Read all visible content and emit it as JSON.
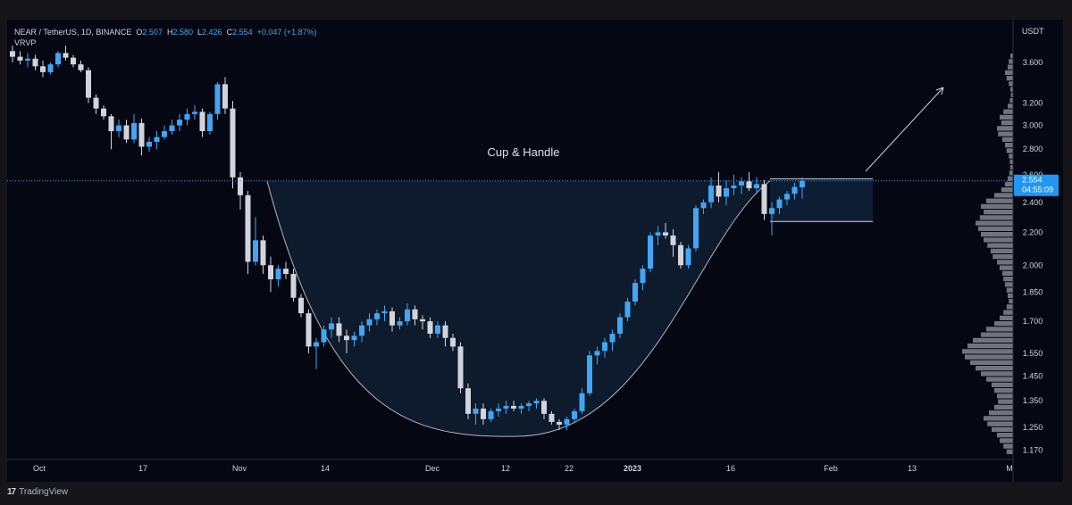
{
  "header": {
    "symbol": "NEAR / TetherUS, 1D, BINANCE",
    "open_label": "O",
    "open": "2.507",
    "high_label": "H",
    "high": "2.580",
    "low_label": "L",
    "low": "2.426",
    "close_label": "C",
    "close": "2.554",
    "change": "+0.047 (+1.87%)",
    "indicator": "VRVP",
    "currency": "USDT"
  },
  "price_tag": {
    "price": "2.554",
    "countdown": "04:55:09"
  },
  "footer": {
    "brand": "TradingView",
    "brand_glyph": "17"
  },
  "colors": {
    "up": "#42a5f5",
    "down": "#d1d4dc",
    "background": "#050813",
    "cup_fill": "#0f1e33",
    "profile": "#9598a1"
  },
  "chart_data": {
    "type": "candlestick",
    "title": "Cup & Handle",
    "ylim": [
      1.14,
      3.85
    ],
    "y_scale": "log",
    "yticks": [
      "3.600",
      "3.200",
      "3.000",
      "2.800",
      "2.600",
      "2.400",
      "2.200",
      "2.000",
      "1.850",
      "1.700",
      "1.550",
      "1.450",
      "1.350",
      "1.250",
      "1.170"
    ],
    "xticks": [
      "Oct",
      "17",
      "Nov",
      "14",
      "Dec",
      "12",
      "22",
      "2023",
      "16",
      "Feb",
      "13",
      "M"
    ],
    "ohlc": [
      [
        3.72,
        3.78,
        3.6,
        3.66
      ],
      [
        3.66,
        3.72,
        3.58,
        3.62
      ],
      [
        3.62,
        3.7,
        3.55,
        3.64
      ],
      [
        3.64,
        3.68,
        3.52,
        3.56
      ],
      [
        3.56,
        3.62,
        3.45,
        3.5
      ],
      [
        3.5,
        3.6,
        3.48,
        3.58
      ],
      [
        3.58,
        3.72,
        3.55,
        3.7
      ],
      [
        3.7,
        3.78,
        3.62,
        3.65
      ],
      [
        3.65,
        3.68,
        3.55,
        3.58
      ],
      [
        3.58,
        3.62,
        3.5,
        3.52
      ],
      [
        3.52,
        3.55,
        3.2,
        3.25
      ],
      [
        3.25,
        3.28,
        3.1,
        3.15
      ],
      [
        3.15,
        3.18,
        3.05,
        3.08
      ],
      [
        3.08,
        3.1,
        2.8,
        2.95
      ],
      [
        2.95,
        3.05,
        2.9,
        3.0
      ],
      [
        3.0,
        3.05,
        2.85,
        2.88
      ],
      [
        2.88,
        3.1,
        2.85,
        3.02
      ],
      [
        3.02,
        3.06,
        2.75,
        2.82
      ],
      [
        2.82,
        2.9,
        2.78,
        2.86
      ],
      [
        2.86,
        2.95,
        2.8,
        2.9
      ],
      [
        2.9,
        3.0,
        2.88,
        2.95
      ],
      [
        2.95,
        3.05,
        2.92,
        3.0
      ],
      [
        3.0,
        3.1,
        2.95,
        3.05
      ],
      [
        3.05,
        3.15,
        3.0,
        3.1
      ],
      [
        3.1,
        3.18,
        3.05,
        3.12
      ],
      [
        3.12,
        3.15,
        2.9,
        2.95
      ],
      [
        2.95,
        3.12,
        2.92,
        3.1
      ],
      [
        3.1,
        3.4,
        3.05,
        3.38
      ],
      [
        3.38,
        3.45,
        3.1,
        3.15
      ],
      [
        3.15,
        3.22,
        2.5,
        2.58
      ],
      [
        2.58,
        2.62,
        2.35,
        2.45
      ],
      [
        2.45,
        2.48,
        1.95,
        2.02
      ],
      [
        2.02,
        2.3,
        2.0,
        2.15
      ],
      [
        2.15,
        2.18,
        1.95,
        2.0
      ],
      [
        2.0,
        2.05,
        1.85,
        1.92
      ],
      [
        1.92,
        2.0,
        1.88,
        1.98
      ],
      [
        1.98,
        2.02,
        1.92,
        1.95
      ],
      [
        1.95,
        1.98,
        1.8,
        1.82
      ],
      [
        1.82,
        1.84,
        1.72,
        1.74
      ],
      [
        1.74,
        1.76,
        1.55,
        1.58
      ],
      [
        1.58,
        1.62,
        1.48,
        1.6
      ],
      [
        1.6,
        1.68,
        1.58,
        1.66
      ],
      [
        1.66,
        1.72,
        1.62,
        1.69
      ],
      [
        1.69,
        1.72,
        1.6,
        1.63
      ],
      [
        1.63,
        1.66,
        1.55,
        1.61
      ],
      [
        1.61,
        1.65,
        1.58,
        1.63
      ],
      [
        1.63,
        1.7,
        1.6,
        1.68
      ],
      [
        1.68,
        1.74,
        1.65,
        1.71
      ],
      [
        1.71,
        1.76,
        1.68,
        1.74
      ],
      [
        1.74,
        1.78,
        1.7,
        1.75
      ],
      [
        1.75,
        1.77,
        1.65,
        1.68
      ],
      [
        1.68,
        1.72,
        1.66,
        1.7
      ],
      [
        1.7,
        1.79,
        1.68,
        1.76
      ],
      [
        1.76,
        1.78,
        1.68,
        1.71
      ],
      [
        1.71,
        1.73,
        1.66,
        1.7
      ],
      [
        1.7,
        1.72,
        1.62,
        1.64
      ],
      [
        1.64,
        1.7,
        1.62,
        1.68
      ],
      [
        1.68,
        1.7,
        1.58,
        1.62
      ],
      [
        1.62,
        1.64,
        1.56,
        1.58
      ],
      [
        1.58,
        1.6,
        1.38,
        1.4
      ],
      [
        1.4,
        1.42,
        1.28,
        1.3
      ],
      [
        1.3,
        1.34,
        1.26,
        1.32
      ],
      [
        1.32,
        1.34,
        1.26,
        1.28
      ],
      [
        1.28,
        1.32,
        1.27,
        1.31
      ],
      [
        1.31,
        1.34,
        1.29,
        1.32
      ],
      [
        1.32,
        1.35,
        1.3,
        1.33
      ],
      [
        1.33,
        1.35,
        1.31,
        1.32
      ],
      [
        1.32,
        1.34,
        1.3,
        1.33
      ],
      [
        1.33,
        1.35,
        1.31,
        1.34
      ],
      [
        1.34,
        1.36,
        1.32,
        1.35
      ],
      [
        1.35,
        1.36,
        1.28,
        1.3
      ],
      [
        1.3,
        1.31,
        1.26,
        1.27
      ],
      [
        1.27,
        1.28,
        1.24,
        1.26
      ],
      [
        1.26,
        1.29,
        1.24,
        1.28
      ],
      [
        1.28,
        1.32,
        1.27,
        1.31
      ],
      [
        1.31,
        1.4,
        1.3,
        1.38
      ],
      [
        1.38,
        1.56,
        1.37,
        1.54
      ],
      [
        1.54,
        1.58,
        1.5,
        1.56
      ],
      [
        1.56,
        1.62,
        1.53,
        1.6
      ],
      [
        1.6,
        1.66,
        1.56,
        1.64
      ],
      [
        1.64,
        1.74,
        1.62,
        1.72
      ],
      [
        1.72,
        1.82,
        1.7,
        1.8
      ],
      [
        1.8,
        1.92,
        1.78,
        1.9
      ],
      [
        1.9,
        2.0,
        1.86,
        1.98
      ],
      [
        1.98,
        2.2,
        1.96,
        2.18
      ],
      [
        2.18,
        2.24,
        2.12,
        2.2
      ],
      [
        2.2,
        2.26,
        2.16,
        2.18
      ],
      [
        2.18,
        2.22,
        2.05,
        2.12
      ],
      [
        2.12,
        2.14,
        1.98,
        2.0
      ],
      [
        2.0,
        2.12,
        1.98,
        2.1
      ],
      [
        2.1,
        2.38,
        2.08,
        2.36
      ],
      [
        2.36,
        2.42,
        2.32,
        2.4
      ],
      [
        2.4,
        2.58,
        2.36,
        2.52
      ],
      [
        2.52,
        2.62,
        2.4,
        2.44
      ],
      [
        2.44,
        2.56,
        2.38,
        2.5
      ],
      [
        2.5,
        2.6,
        2.45,
        2.52
      ],
      [
        2.52,
        2.58,
        2.46,
        2.55
      ],
      [
        2.55,
        2.62,
        2.48,
        2.5
      ],
      [
        2.5,
        2.58,
        2.46,
        2.53
      ],
      [
        2.53,
        2.56,
        2.28,
        2.32
      ],
      [
        2.32,
        2.4,
        2.18,
        2.36
      ],
      [
        2.36,
        2.44,
        2.32,
        2.42
      ],
      [
        2.42,
        2.48,
        2.38,
        2.46
      ],
      [
        2.46,
        2.54,
        2.42,
        2.51
      ],
      [
        2.507,
        2.58,
        2.426,
        2.554
      ]
    ],
    "annotations": {
      "resistance_level": 2.554,
      "handle_range": [
        2.27,
        2.57
      ],
      "label": "Cup & Handle"
    },
    "volume_profile": [
      0.05,
      0.08,
      0.1,
      0.15,
      0.12,
      0.08,
      0.05,
      0.04,
      0.06,
      0.1,
      0.18,
      0.25,
      0.22,
      0.3,
      0.28,
      0.2,
      0.15,
      0.12,
      0.08,
      0.06,
      0.05,
      0.07,
      0.1,
      0.15,
      0.22,
      0.35,
      0.5,
      0.6,
      0.55,
      0.62,
      0.7,
      0.65,
      0.6,
      0.55,
      0.48,
      0.42,
      0.38,
      0.3,
      0.25,
      0.2,
      0.18,
      0.15,
      0.12,
      0.1,
      0.08,
      0.12,
      0.18,
      0.25,
      0.35,
      0.5,
      0.6,
      0.75,
      0.85,
      0.95,
      0.9,
      0.8,
      0.7,
      0.6,
      0.5,
      0.4,
      0.35,
      0.3,
      0.28,
      0.35,
      0.45,
      0.55,
      0.48,
      0.4,
      0.3,
      0.25,
      0.18,
      0.12
    ]
  }
}
